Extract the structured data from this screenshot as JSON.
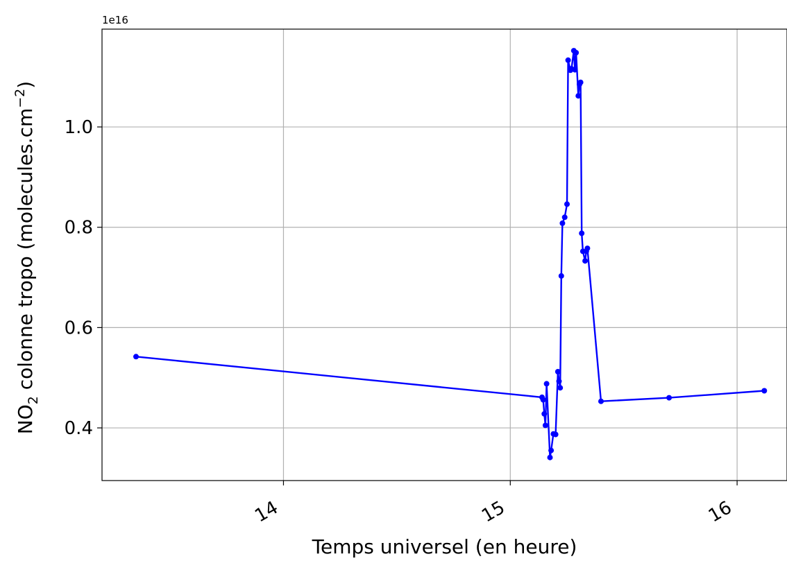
{
  "chart_data": {
    "type": "line",
    "title": "",
    "xlabel": "Temps universel (en heure)",
    "ylabel_main": "NO",
    "ylabel_sub": "2",
    "ylabel_rest": " colonne tropo (molecules.cm",
    "ylabel_sup": "−2",
    "ylabel_end": ")",
    "y_offset_text": "1e16",
    "xlim": [
      13.2,
      16.22
    ],
    "ylim": [
      0.295,
      1.195
    ],
    "x_ticks": [
      14,
      15,
      16
    ],
    "x_tick_labels": [
      "14",
      "15",
      "16"
    ],
    "y_ticks": [
      0.4,
      0.6,
      0.8,
      1.0
    ],
    "y_tick_labels": [
      "0.4",
      "0.6",
      "0.8",
      "1.0"
    ],
    "grid": true,
    "color": "#0000ff",
    "series": [
      {
        "x": [
          13.35,
          15.14,
          15.145,
          15.15,
          15.155,
          15.16,
          15.175,
          15.18,
          15.19,
          15.2,
          15.21,
          15.215,
          15.22,
          15.225,
          15.23,
          15.24,
          15.25,
          15.255,
          15.265,
          15.27,
          15.28,
          15.285,
          15.29,
          15.3,
          15.305,
          15.31,
          15.315,
          15.32,
          15.33,
          15.335,
          15.34,
          15.4,
          15.7,
          16.12
        ],
        "y": [
          0.542,
          0.461,
          0.456,
          0.428,
          0.405,
          0.488,
          0.341,
          0.355,
          0.388,
          0.387,
          0.512,
          0.493,
          0.48,
          0.703,
          0.808,
          0.82,
          0.846,
          1.133,
          1.113,
          1.116,
          1.152,
          1.114,
          1.148,
          1.062,
          1.085,
          1.089,
          0.788,
          0.752,
          0.733,
          0.752,
          0.758,
          0.453,
          0.46,
          0.474
        ]
      }
    ]
  }
}
